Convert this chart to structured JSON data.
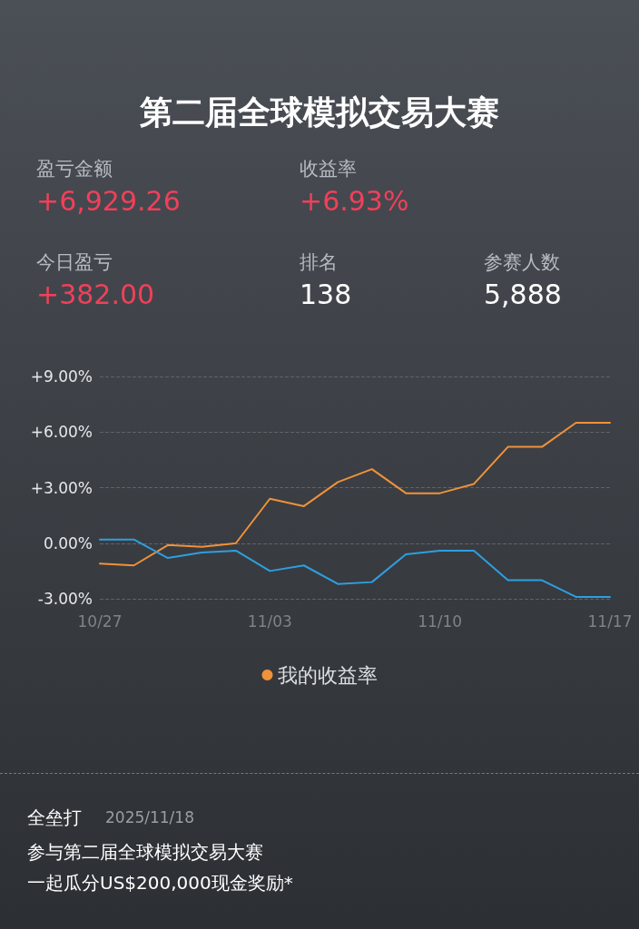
{
  "chart_data": {
    "type": "line",
    "title": "第二届全球模拟交易大赛",
    "annotations": [
      "盈亏金额",
      "+6,929.26",
      "收益率",
      "+6.93%",
      "今日盈亏",
      "+382.00",
      "排名",
      "138",
      "参赛人数",
      "5,888",
      "全垒打",
      "2025/11/18",
      "参与第二届全球模拟交易大赛",
      "一起瓜分US$200,000现金奖励*"
    ],
    "categories": [
      "10/27",
      null,
      null,
      null,
      null,
      "11/03",
      null,
      null,
      null,
      null,
      "11/10",
      null,
      null,
      null,
      null,
      "11/17"
    ],
    "series": [
      {
        "name": "我的收益率",
        "color": "#f0923a",
        "values": [
          -1.1,
          -1.2,
          -0.1,
          -0.2,
          0.0,
          2.4,
          2.0,
          3.3,
          4.0,
          2.7,
          2.7,
          3.2,
          5.2,
          5.2,
          6.5,
          6.5
        ]
      },
      {
        "color": "#2e9fe0",
        "values": [
          0.2,
          0.2,
          -0.8,
          -0.5,
          -0.4,
          -1.5,
          -1.2,
          -2.2,
          -2.1,
          -0.6,
          -0.4,
          -0.4,
          -2.0,
          -2.0,
          -2.9,
          -2.9
        ]
      }
    ],
    "ylim": [
      -3,
      9
    ],
    "yticks": [
      {
        "value": -3,
        "label": "-3.00%"
      },
      {
        "value": 0,
        "label": "0.00%"
      },
      {
        "value": 3,
        "label": "+3.00%"
      },
      {
        "value": 6,
        "label": "+6.00%"
      },
      {
        "value": 9,
        "label": "+9.00%"
      }
    ],
    "grid": "y",
    "legend": "bottom",
    "marker": "none",
    "line_style": "solid"
  }
}
